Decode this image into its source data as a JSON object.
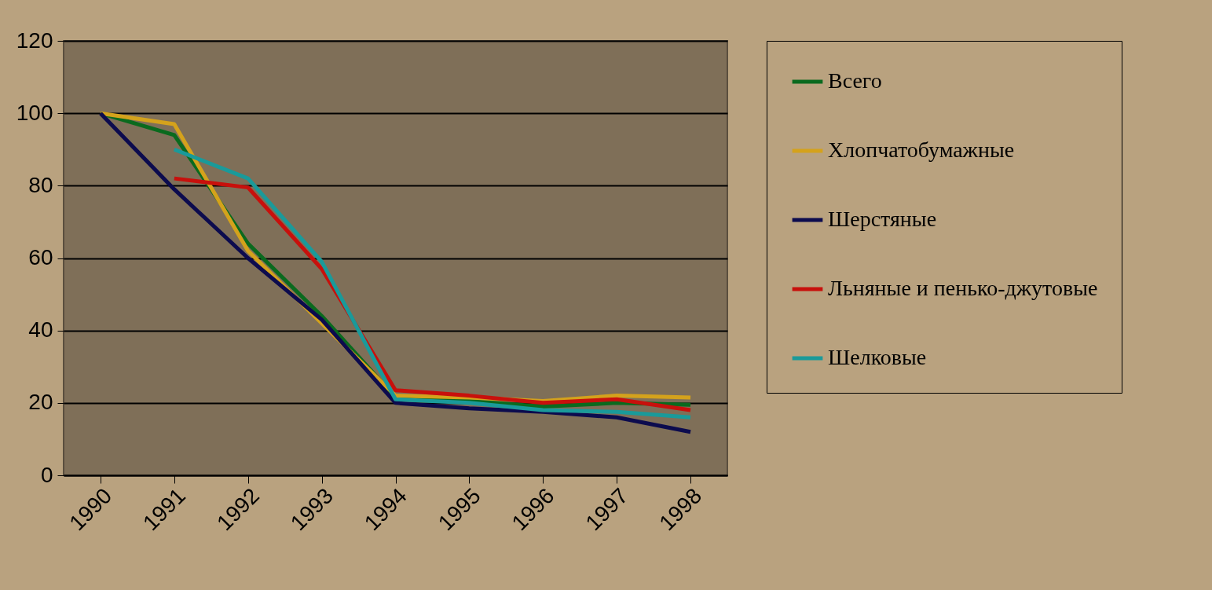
{
  "chart_data": {
    "type": "line",
    "categories": [
      "1990",
      "1991",
      "1992",
      "1993",
      "1994",
      "1995",
      "1996",
      "1997",
      "1998"
    ],
    "series": [
      {
        "name": "Всего",
        "color": "#0a6a1e",
        "values": [
          100,
          94,
          64,
          44,
          21.5,
          20.5,
          19,
          20,
          19.5
        ]
      },
      {
        "name": "Хлопчатобумажные",
        "color": "#d4a21c",
        "values": [
          100,
          97,
          62,
          42,
          22,
          21.5,
          20.5,
          22,
          21.5
        ]
      },
      {
        "name": "Шерстяные",
        "color": "#0c0b4e",
        "values": [
          100,
          79,
          60,
          43,
          20,
          18.5,
          17.5,
          16,
          12
        ]
      },
      {
        "name": "Льняные и пенько-джутовые",
        "color": "#c8100c",
        "values": [
          null,
          82,
          79.5,
          57,
          23.5,
          22,
          20,
          21,
          18
        ]
      },
      {
        "name": "Шелковые",
        "color": "#1a9a9a",
        "values": [
          null,
          90,
          82,
          59,
          21,
          20,
          18,
          17.5,
          16
        ]
      }
    ],
    "ylim": [
      0,
      120
    ],
    "yticks": [
      0,
      20,
      40,
      60,
      80,
      100,
      120
    ],
    "grid": "y",
    "legend": "right",
    "marker": "none",
    "line_style": "solid"
  }
}
